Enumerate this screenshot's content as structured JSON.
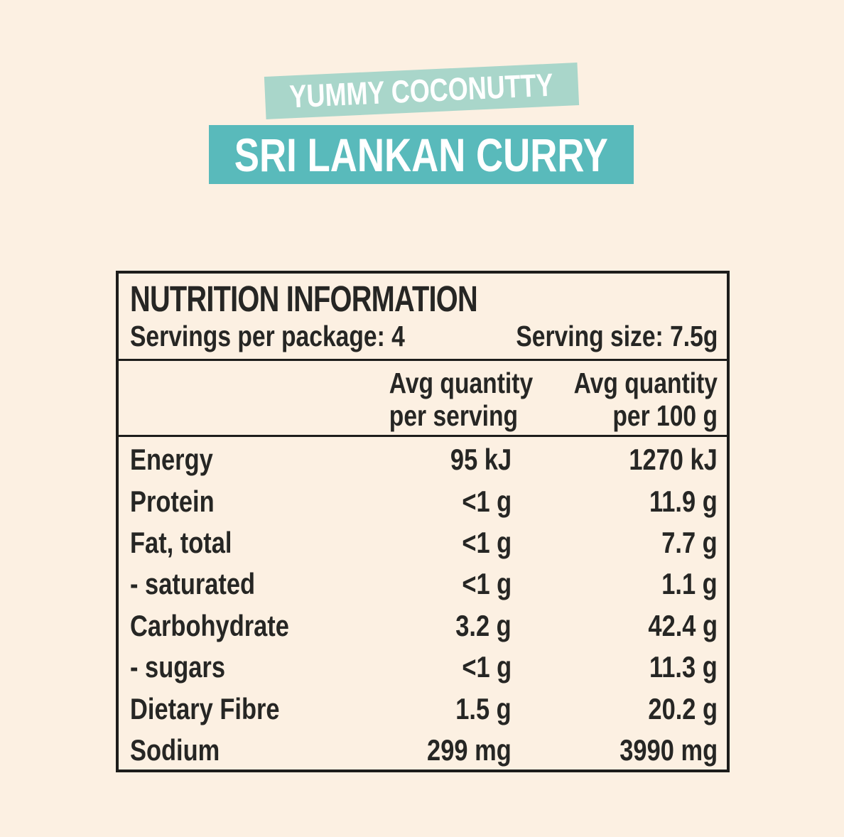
{
  "colors": {
    "background": "#fcf0e2",
    "banner_top_bg": "#a9d6ca",
    "banner_main_bg": "#59babb",
    "banner_text": "#ffffff",
    "table_text": "#262624",
    "table_border": "#1d1d1b"
  },
  "banners": {
    "top": {
      "label": "YUMMY COCONUTTY"
    },
    "main": {
      "label": "SRI LANKAN CURRY"
    }
  },
  "nutrition_table": {
    "title": "NUTRITION INFORMATION",
    "servings_per_package": "Servings per package: 4",
    "serving_size": "Serving size: 7.5g",
    "columns": {
      "per_serving": {
        "line1": "Avg quantity",
        "line2": "per serving"
      },
      "per_100g": {
        "line1": "Avg quantity",
        "line2": "per 100 g"
      }
    },
    "rows": [
      {
        "label": "Energy",
        "per_serving": "95 kJ",
        "per_100g": "1270 kJ"
      },
      {
        "label": "Protein",
        "per_serving": "<1 g",
        "per_100g": "11.9 g"
      },
      {
        "label": "Fat, total",
        "per_serving": "<1 g",
        "per_100g": "7.7 g"
      },
      {
        "label": "- saturated",
        "per_serving": "<1 g",
        "per_100g": "1.1 g"
      },
      {
        "label": "Carbohydrate",
        "per_serving": "3.2 g",
        "per_100g": "42.4 g"
      },
      {
        "label": "- sugars",
        "per_serving": "<1 g",
        "per_100g": "11.3 g"
      },
      {
        "label": "Dietary Fibre",
        "per_serving": "1.5 g",
        "per_100g": "20.2 g"
      },
      {
        "label": "Sodium",
        "per_serving": "299 mg",
        "per_100g": "3990 mg"
      }
    ]
  }
}
